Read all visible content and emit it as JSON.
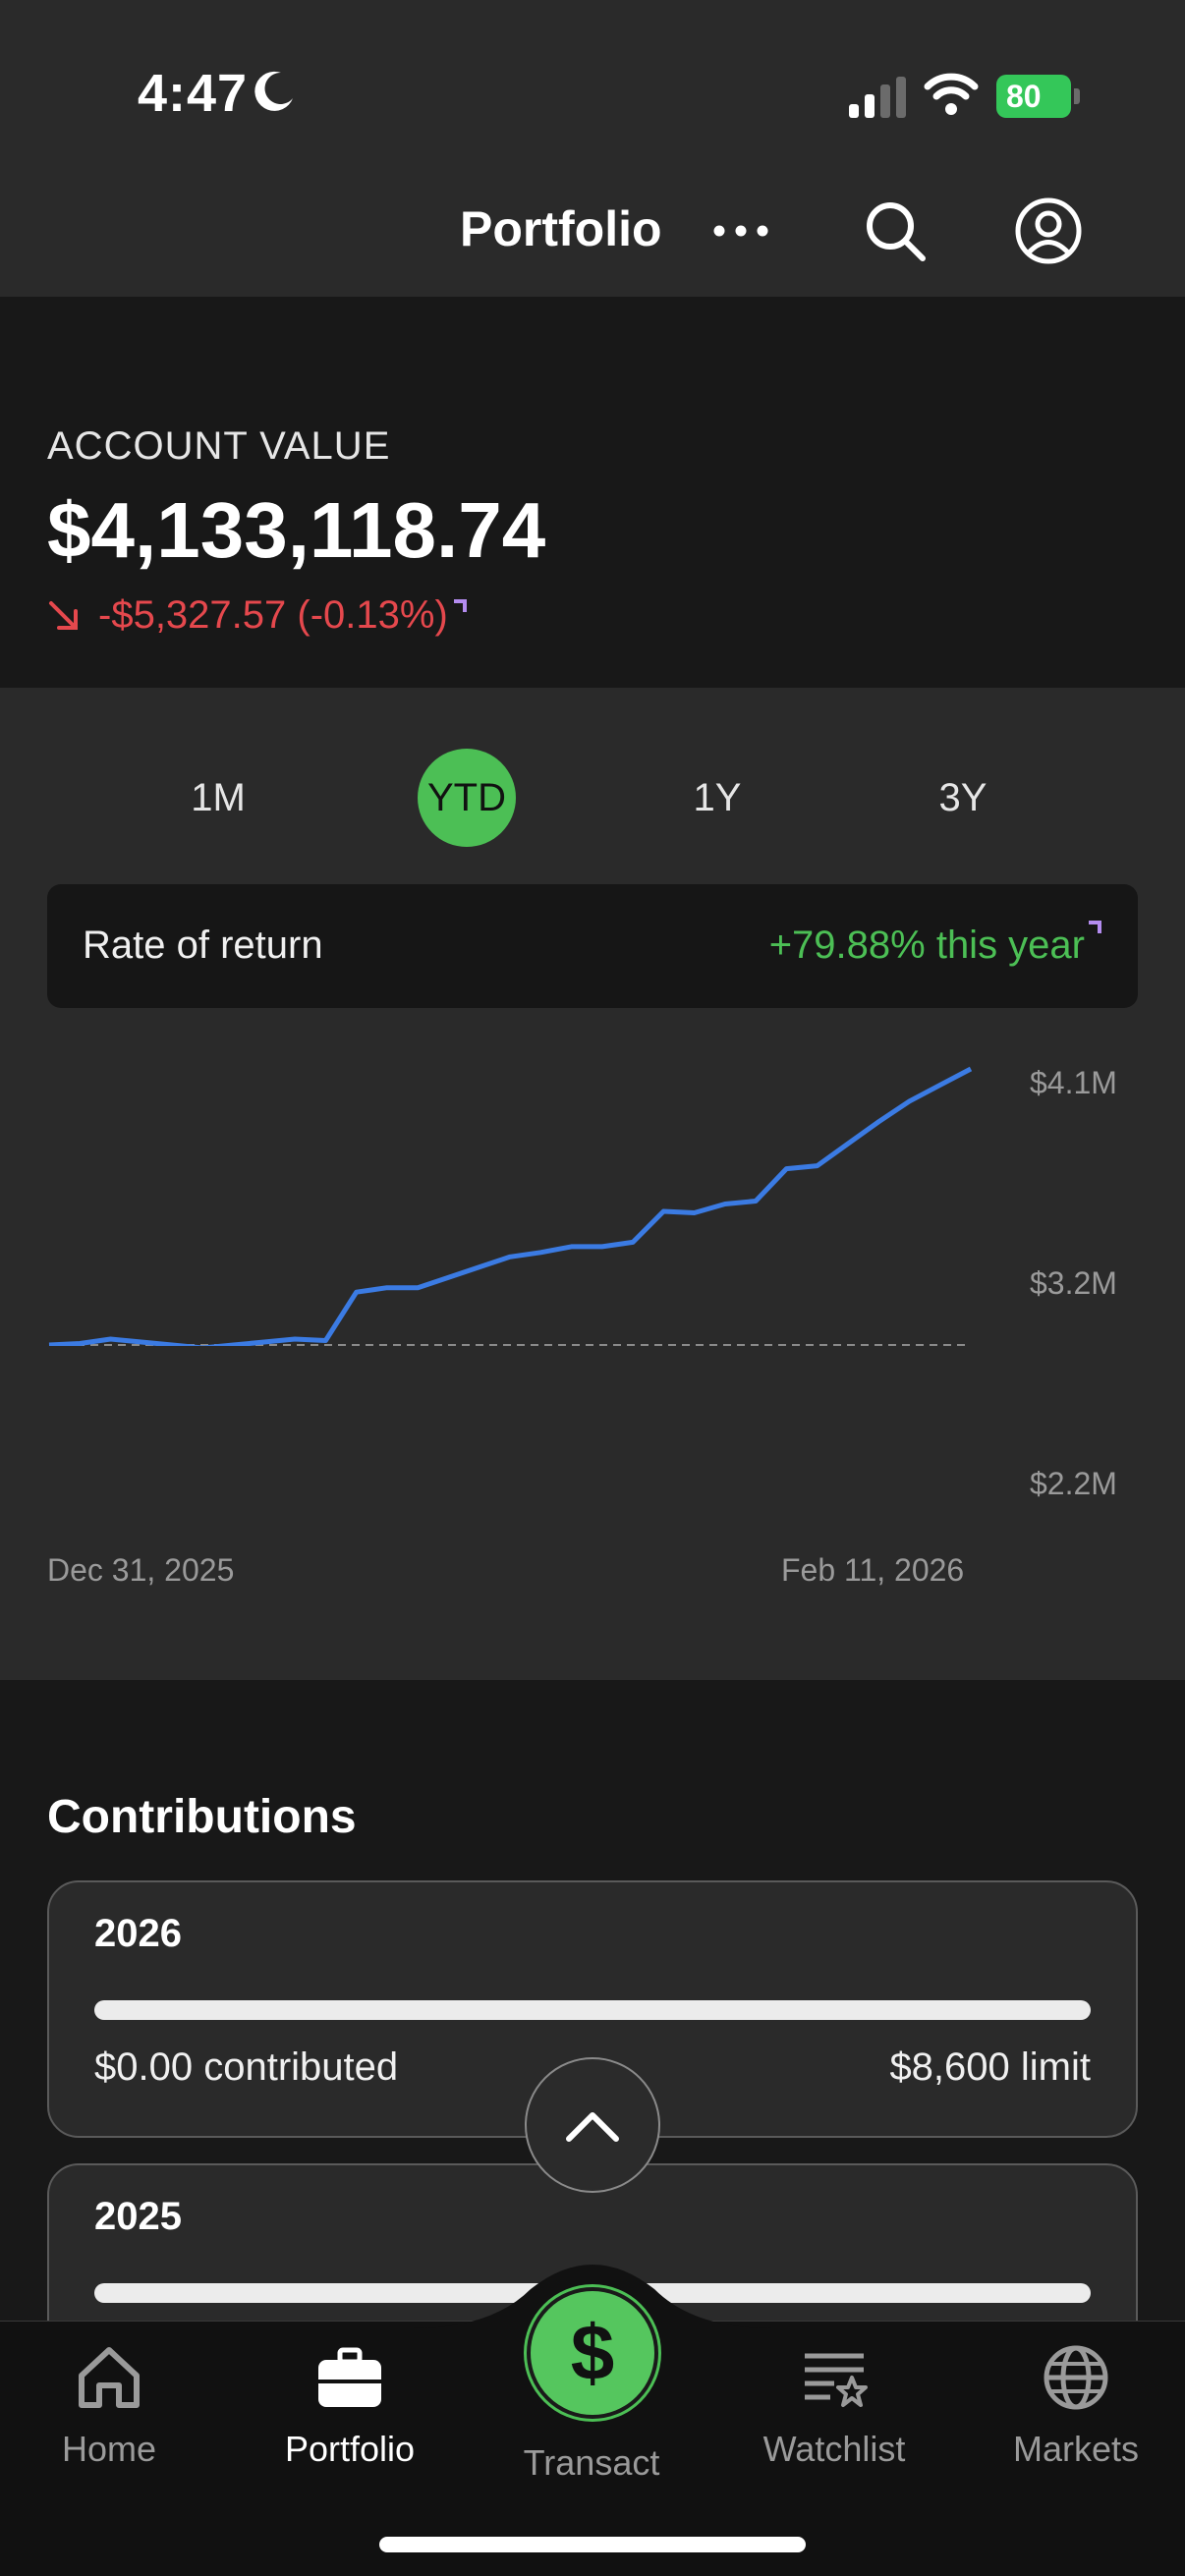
{
  "status_bar": {
    "time": "4:47",
    "battery": "80"
  },
  "header": {
    "title": "Portfolio"
  },
  "account": {
    "label": "ACCOUNT VALUE",
    "value": "$4,133,118.74",
    "change": "-$5,327.57 (-0.13%)"
  },
  "range_tabs": [
    {
      "label": "1M"
    },
    {
      "label": "YTD",
      "selected": true
    },
    {
      "label": "1Y"
    },
    {
      "label": "3Y"
    }
  ],
  "rate_of_return": {
    "label": "Rate of return",
    "value": "+79.88% this year"
  },
  "chart_data": {
    "type": "line",
    "x_start": "Dec 31, 2025",
    "x_end": "Feb 11, 2026",
    "y_ticks": [
      "$4.1M",
      "$3.2M",
      "$2.2M"
    ],
    "ylim": [
      2.2,
      4.1
    ],
    "baseline": 2.2,
    "grid": false,
    "line_color": "#3b7be3",
    "series": [
      {
        "values": [
          2.2,
          2.21,
          2.24,
          2.22,
          2.2,
          2.18,
          2.2,
          2.22,
          2.24,
          2.23,
          2.56,
          2.59,
          2.59,
          2.66,
          2.73,
          2.8,
          2.83,
          2.87,
          2.87,
          2.9,
          3.11,
          3.1,
          3.16,
          3.18,
          3.4,
          3.42,
          3.57,
          3.72,
          3.86,
          3.97,
          4.08
        ]
      }
    ]
  },
  "contributions": {
    "title": "Contributions",
    "cards": [
      {
        "year": "2026",
        "contributed": "$0.00 contributed",
        "limit": "$8,600 limit",
        "progress": 0
      },
      {
        "year": "2025",
        "progress": 0
      }
    ]
  },
  "tabs": [
    {
      "label": "Home",
      "icon": "home-icon"
    },
    {
      "label": "Portfolio",
      "icon": "briefcase-icon",
      "active": true
    },
    {
      "label": "Transact",
      "icon": "dollar-icon"
    },
    {
      "label": "Watchlist",
      "icon": "watchlist-icon"
    },
    {
      "label": "Markets",
      "icon": "globe-icon"
    }
  ],
  "colors": {
    "accent_green": "#4cbf55",
    "loss_red": "#e5484d",
    "chart_line": "#3b7be3"
  }
}
